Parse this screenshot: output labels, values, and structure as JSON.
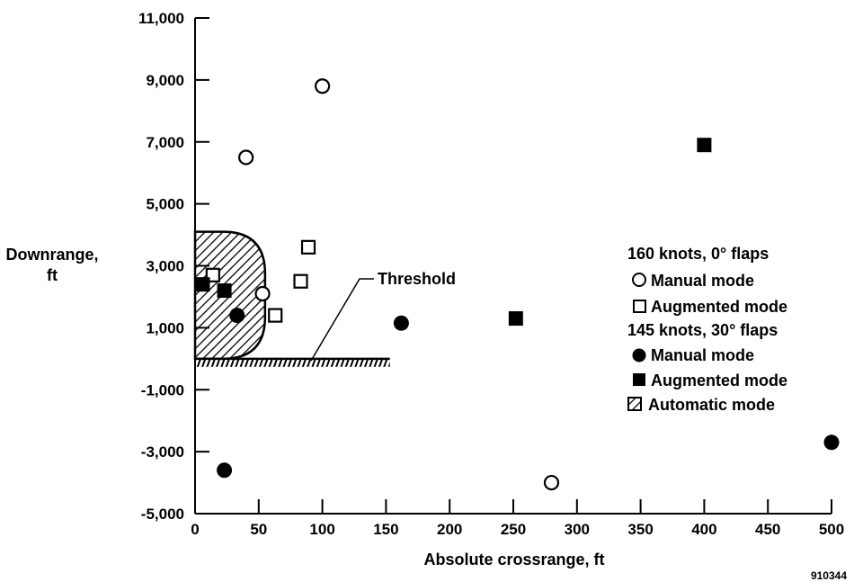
{
  "chart_data": {
    "type": "scatter",
    "xlabel": "Absolute crossrange, ft",
    "ylabel_lines": [
      "Downrange,",
      "ft"
    ],
    "xlim": [
      0,
      500
    ],
    "ylim": [
      -5000,
      11000
    ],
    "xticks": [
      0,
      50,
      100,
      150,
      200,
      250,
      300,
      350,
      400,
      450,
      500
    ],
    "xtick_labels": [
      "0",
      "50",
      "100",
      "150",
      "200",
      "250",
      "300",
      "350",
      "400",
      "450",
      "500"
    ],
    "yticks": [
      -5000,
      -3000,
      -1000,
      1000,
      3000,
      5000,
      7000,
      9000,
      11000
    ],
    "ytick_labels": [
      "-5,000",
      "-3,000",
      "-1,000",
      "1,000",
      "3,000",
      "5,000",
      "7,000",
      "9,000",
      "11,000"
    ],
    "grid": false,
    "legend_position": "right",
    "legend": {
      "group1_header": "160 knots, 0° flaps",
      "group2_header": "145 knots, 30° flaps",
      "manual_label": "Manual mode",
      "augmented_label": "Augmented mode",
      "automatic_label": "Automatic mode"
    },
    "series": [
      {
        "group": "160 knots, 0° flaps",
        "name": "Manual mode",
        "marker": "open-circle",
        "points": [
          [
            40,
            6500
          ],
          [
            100,
            8800
          ],
          [
            53,
            2100
          ],
          [
            280,
            -4000
          ]
        ]
      },
      {
        "group": "160 knots, 0° flaps",
        "name": "Augmented mode",
        "marker": "open-square",
        "points": [
          [
            14,
            2700
          ],
          [
            89,
            3600
          ],
          [
            83,
            2500
          ],
          [
            63,
            1400
          ]
        ]
      },
      {
        "group": "145 knots, 30° flaps",
        "name": "Manual mode",
        "marker": "filled-circle",
        "points": [
          [
            33,
            1400
          ],
          [
            162,
            1150
          ],
          [
            23,
            -3600
          ],
          [
            500,
            -2700
          ]
        ]
      },
      {
        "group": "145 knots, 30° flaps",
        "name": "Augmented mode",
        "marker": "filled-square",
        "points": [
          [
            6,
            2400
          ],
          [
            23,
            2200
          ],
          [
            252,
            1300
          ],
          [
            400,
            6900
          ]
        ]
      }
    ],
    "automatic_mode_region": {
      "name": "Automatic mode",
      "x_range": [
        0,
        55
      ],
      "y_range": [
        0,
        4100
      ]
    },
    "threshold": {
      "label": "Threshold",
      "y": 0,
      "x_range": [
        0,
        153
      ]
    },
    "figure_id": "910344"
  }
}
